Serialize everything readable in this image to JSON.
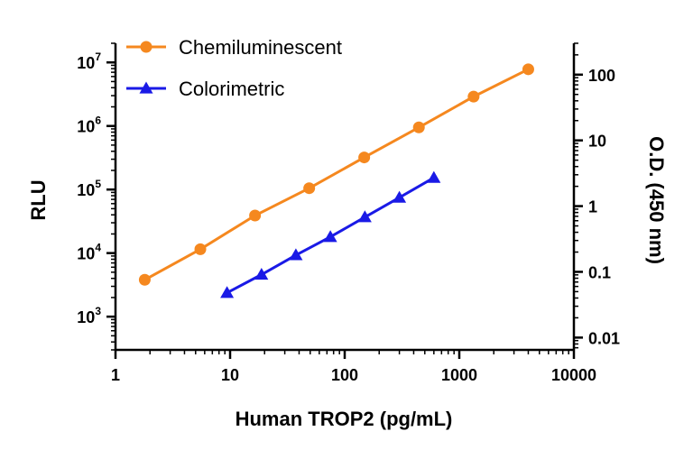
{
  "chart_data": {
    "type": "line",
    "title": "",
    "xlabel": "Human TROP2 (pg/mL)",
    "ylabel_left": "RLU",
    "ylabel_right": "O.D. (450 nm)",
    "x_scale": "log",
    "xlim": [
      1,
      10000
    ],
    "x_ticks": [
      1,
      10,
      100,
      1000,
      10000
    ],
    "x_tick_labels": [
      "1",
      "10",
      "100",
      "1000",
      "10000"
    ],
    "y_left_scale": "log",
    "y_left_lim": [
      300,
      20000000
    ],
    "y_left_ticks": [
      {
        "value": 1000,
        "base": "10",
        "exp": "3"
      },
      {
        "value": 10000,
        "base": "10",
        "exp": "4"
      },
      {
        "value": 100000,
        "base": "10",
        "exp": "5"
      },
      {
        "value": 1000000,
        "base": "10",
        "exp": "6"
      },
      {
        "value": 10000000,
        "base": "10",
        "exp": "7"
      }
    ],
    "y_right_scale": "log",
    "y_right_lim": [
      0.0065,
      300
    ],
    "y_right_ticks": [
      0.01,
      0.1,
      1,
      10,
      100
    ],
    "y_right_tick_labels": [
      "0.01",
      "0.1",
      "1",
      "10",
      "100"
    ],
    "grid": false,
    "legend_position": "top-left",
    "series": [
      {
        "name": "Chemiluminescent",
        "axis": "left",
        "color": "#F5881F",
        "marker": "circle",
        "x": [
          1.8,
          5.5,
          16.5,
          49,
          148,
          444,
          1333,
          4000
        ],
        "y": [
          3800,
          11500,
          39000,
          105000,
          320000,
          950000,
          2900000,
          7800000
        ]
      },
      {
        "name": "Colorimetric",
        "axis": "right",
        "color": "#1A1AE6",
        "marker": "triangle",
        "x": [
          9.4,
          18.8,
          37.5,
          75,
          150,
          300,
          600
        ],
        "y": [
          0.048,
          0.091,
          0.18,
          0.34,
          0.68,
          1.35,
          2.7
        ]
      }
    ]
  }
}
